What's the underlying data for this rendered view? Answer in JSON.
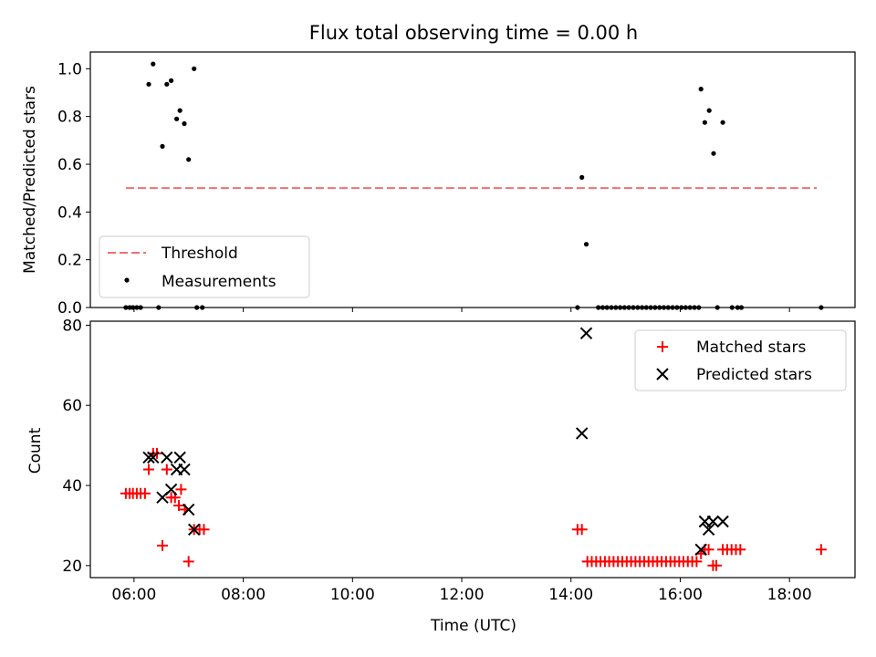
{
  "title": "Flux total observing time = 0.00 h",
  "chart_data": [
    {
      "type": "scatter",
      "ylabel": "Matched/Predicted stars",
      "xlim_hours": [
        5.2,
        19.2
      ],
      "ylim": [
        0,
        1.07
      ],
      "yticks": [
        0.0,
        0.2,
        0.4,
        0.6,
        0.8,
        1.0
      ],
      "ytick_labels": [
        "0.0",
        "0.2",
        "0.4",
        "0.6",
        "0.8",
        "1.0"
      ],
      "legend_position": "lower-left",
      "threshold": {
        "name": "Threshold",
        "y": 0.5,
        "x_range": [
          5.85,
          18.5
        ],
        "color": "#f07070"
      },
      "measurements": {
        "name": "Measurements",
        "color": "#000000",
        "points": [
          [
            5.85,
            0
          ],
          [
            5.92,
            0
          ],
          [
            5.98,
            0
          ],
          [
            6.05,
            0
          ],
          [
            6.12,
            0
          ],
          [
            6.45,
            0
          ],
          [
            7.15,
            0
          ],
          [
            7.25,
            0
          ],
          [
            6.27,
            0.935
          ],
          [
            6.35,
            1.02
          ],
          [
            6.52,
            0.675
          ],
          [
            6.6,
            0.935
          ],
          [
            6.68,
            0.95
          ],
          [
            6.78,
            0.79
          ],
          [
            6.84,
            0.825
          ],
          [
            6.92,
            0.77
          ],
          [
            7.0,
            0.62
          ],
          [
            7.1,
            1.0
          ],
          [
            14.12,
            0
          ],
          [
            14.2,
            0.545
          ],
          [
            14.28,
            0.265
          ],
          [
            14.5,
            0
          ],
          [
            14.58,
            0
          ],
          [
            14.66,
            0
          ],
          [
            14.74,
            0
          ],
          [
            14.82,
            0
          ],
          [
            14.9,
            0
          ],
          [
            14.98,
            0
          ],
          [
            15.06,
            0
          ],
          [
            15.14,
            0
          ],
          [
            15.22,
            0
          ],
          [
            15.3,
            0
          ],
          [
            15.38,
            0
          ],
          [
            15.46,
            0
          ],
          [
            15.54,
            0
          ],
          [
            15.62,
            0
          ],
          [
            15.7,
            0
          ],
          [
            15.78,
            0
          ],
          [
            15.86,
            0
          ],
          [
            15.94,
            0
          ],
          [
            16.02,
            0
          ],
          [
            16.1,
            0
          ],
          [
            16.18,
            0
          ],
          [
            16.26,
            0
          ],
          [
            16.34,
            0
          ],
          [
            16.38,
            0.915
          ],
          [
            16.45,
            0.775
          ],
          [
            16.53,
            0.825
          ],
          [
            16.61,
            0.645
          ],
          [
            16.78,
            0.775
          ],
          [
            16.68,
            0
          ],
          [
            16.95,
            0
          ],
          [
            17.05,
            0
          ],
          [
            17.12,
            0
          ],
          [
            18.58,
            0
          ]
        ]
      }
    },
    {
      "type": "scatter",
      "ylabel": "Count",
      "xlabel": "Time (UTC)",
      "xlim_hours": [
        5.2,
        19.2
      ],
      "ylim": [
        17,
        81
      ],
      "yticks": [
        20,
        40,
        60,
        80
      ],
      "ytick_labels": [
        "20",
        "40",
        "60",
        "80"
      ],
      "xticks_hours": [
        6,
        8,
        10,
        12,
        14,
        16,
        18
      ],
      "xtick_labels": [
        "06:00",
        "08:00",
        "10:00",
        "12:00",
        "14:00",
        "16:00",
        "18:00"
      ],
      "legend_position": "top-right",
      "series": [
        {
          "name": "Matched stars",
          "color": "#ff0000",
          "marker": "plus",
          "points": [
            [
              5.85,
              38
            ],
            [
              5.92,
              38
            ],
            [
              5.98,
              38
            ],
            [
              6.05,
              38
            ],
            [
              6.12,
              38
            ],
            [
              6.2,
              38
            ],
            [
              6.27,
              44
            ],
            [
              6.35,
              48
            ],
            [
              6.42,
              48
            ],
            [
              6.52,
              25
            ],
            [
              6.6,
              44
            ],
            [
              6.68,
              37
            ],
            [
              6.75,
              37
            ],
            [
              6.82,
              35
            ],
            [
              6.86,
              39
            ],
            [
              6.93,
              34
            ],
            [
              7.0,
              21
            ],
            [
              7.1,
              29
            ],
            [
              7.2,
              29
            ],
            [
              7.28,
              29
            ],
            [
              14.12,
              29
            ],
            [
              14.2,
              29
            ],
            [
              14.3,
              21
            ],
            [
              14.38,
              21
            ],
            [
              14.46,
              21
            ],
            [
              14.54,
              21
            ],
            [
              14.62,
              21
            ],
            [
              14.7,
              21
            ],
            [
              14.78,
              21
            ],
            [
              14.86,
              21
            ],
            [
              14.94,
              21
            ],
            [
              15.02,
              21
            ],
            [
              15.1,
              21
            ],
            [
              15.18,
              21
            ],
            [
              15.26,
              21
            ],
            [
              15.34,
              21
            ],
            [
              15.42,
              21
            ],
            [
              15.5,
              21
            ],
            [
              15.58,
              21
            ],
            [
              15.66,
              21
            ],
            [
              15.74,
              21
            ],
            [
              15.82,
              21
            ],
            [
              15.9,
              21
            ],
            [
              15.98,
              21
            ],
            [
              16.06,
              21
            ],
            [
              16.14,
              21
            ],
            [
              16.22,
              21
            ],
            [
              16.3,
              21
            ],
            [
              16.38,
              23
            ],
            [
              16.45,
              24
            ],
            [
              16.52,
              24
            ],
            [
              16.6,
              20
            ],
            [
              16.66,
              20
            ],
            [
              16.78,
              24
            ],
            [
              16.86,
              24
            ],
            [
              16.94,
              24
            ],
            [
              17.02,
              24
            ],
            [
              17.1,
              24
            ],
            [
              18.58,
              24
            ]
          ]
        },
        {
          "name": "Predicted stars",
          "color": "#000000",
          "marker": "x",
          "points": [
            [
              6.27,
              47
            ],
            [
              6.35,
              47
            ],
            [
              6.52,
              37
            ],
            [
              6.6,
              47
            ],
            [
              6.68,
              39
            ],
            [
              6.78,
              44
            ],
            [
              6.84,
              47
            ],
            [
              6.92,
              44
            ],
            [
              7.0,
              34
            ],
            [
              7.1,
              29
            ],
            [
              14.2,
              53
            ],
            [
              14.28,
              78
            ],
            [
              16.38,
              24
            ],
            [
              16.45,
              31
            ],
            [
              16.52,
              29
            ],
            [
              16.6,
              31
            ],
            [
              16.78,
              31
            ]
          ]
        }
      ]
    }
  ]
}
